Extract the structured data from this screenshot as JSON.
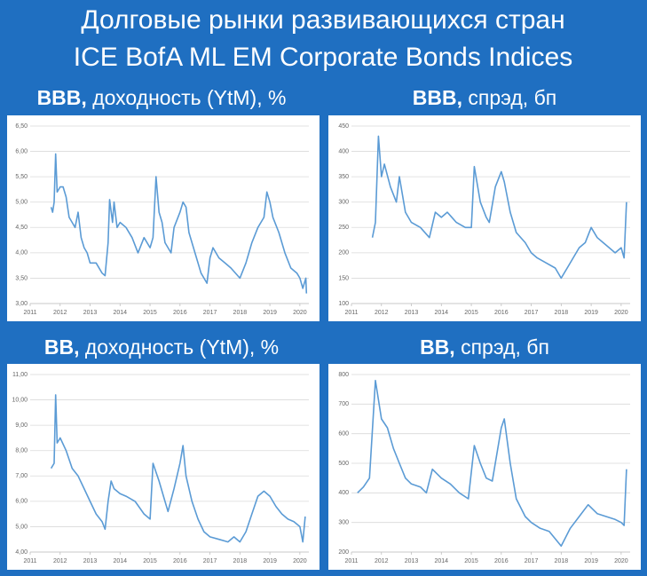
{
  "header": {
    "title": [
      "Долговые рынки развивающихся стран",
      "ICE BofA ML EM Corporate Bonds Indices"
    ]
  },
  "chart_data": [
    {
      "type": "line",
      "title": [
        "BBB,",
        "доходность (YtM), %"
      ],
      "color": "#5b9bd5",
      "grid": true,
      "xlim": [
        2011,
        2020.3
      ],
      "xticks": [
        2011,
        2012,
        2013,
        2014,
        2015,
        2016,
        2017,
        2018,
        2019,
        2020
      ],
      "ylim": [
        3,
        6.5
      ],
      "yticks": [
        {
          "value": 3,
          "label": "3,00"
        },
        {
          "value": 3.5,
          "label": "3,50"
        },
        {
          "value": 4,
          "label": "4,00"
        },
        {
          "value": 4.5,
          "label": "4,50"
        },
        {
          "value": 5,
          "label": "5,00"
        },
        {
          "value": 5.5,
          "label": "5,50"
        },
        {
          "value": 6,
          "label": "6,00"
        },
        {
          "value": 6.5,
          "label": "6,50"
        }
      ],
      "x": [
        2011.7,
        2011.75,
        2011.8,
        2011.85,
        2011.9,
        2012.0,
        2012.1,
        2012.2,
        2012.3,
        2012.4,
        2012.5,
        2012.6,
        2012.7,
        2012.8,
        2012.9,
        2013.0,
        2013.2,
        2013.4,
        2013.5,
        2013.6,
        2013.65,
        2013.75,
        2013.8,
        2013.9,
        2014.0,
        2014.2,
        2014.4,
        2014.6,
        2014.8,
        2015.0,
        2015.1,
        2015.2,
        2015.3,
        2015.4,
        2015.5,
        2015.7,
        2015.8,
        2016.0,
        2016.1,
        2016.2,
        2016.3,
        2016.5,
        2016.7,
        2016.9,
        2017.0,
        2017.1,
        2017.3,
        2017.5,
        2017.7,
        2018.0,
        2018.2,
        2018.4,
        2018.6,
        2018.8,
        2018.9,
        2019.0,
        2019.1,
        2019.3,
        2019.5,
        2019.7,
        2019.9,
        2020.0,
        2020.1,
        2020.2,
        2020.22
      ],
      "values": [
        4.9,
        4.8,
        5.0,
        5.95,
        5.2,
        5.3,
        5.3,
        5.1,
        4.7,
        4.6,
        4.5,
        4.8,
        4.3,
        4.1,
        4.0,
        3.8,
        3.8,
        3.6,
        3.55,
        4.2,
        5.05,
        4.6,
        5.0,
        4.5,
        4.6,
        4.5,
        4.3,
        4.0,
        4.3,
        4.1,
        4.3,
        5.5,
        4.8,
        4.6,
        4.2,
        4.0,
        4.5,
        4.8,
        5.0,
        4.9,
        4.4,
        4.0,
        3.6,
        3.4,
        3.9,
        4.1,
        3.9,
        3.8,
        3.7,
        3.5,
        3.8,
        4.2,
        4.5,
        4.7,
        5.2,
        5.0,
        4.7,
        4.4,
        4.0,
        3.7,
        3.6,
        3.5,
        3.3,
        3.5,
        3.2
      ]
    },
    {
      "type": "line",
      "title": [
        "BBB,",
        "спрэд, бп"
      ],
      "color": "#5b9bd5",
      "grid": true,
      "xlim": [
        2011,
        2020.3
      ],
      "xticks": [
        2011,
        2012,
        2013,
        2014,
        2015,
        2016,
        2017,
        2018,
        2019,
        2020
      ],
      "ylim": [
        100,
        450
      ],
      "yticks": [
        100,
        150,
        200,
        250,
        300,
        350,
        400,
        450
      ],
      "x": [
        2011.7,
        2011.8,
        2011.9,
        2012.0,
        2012.1,
        2012.3,
        2012.5,
        2012.6,
        2012.8,
        2013.0,
        2013.3,
        2013.6,
        2013.8,
        2014.0,
        2014.2,
        2014.5,
        2014.8,
        2015.0,
        2015.1,
        2015.3,
        2015.5,
        2015.6,
        2015.8,
        2016.0,
        2016.1,
        2016.3,
        2016.5,
        2016.8,
        2017.0,
        2017.2,
        2017.5,
        2017.8,
        2018.0,
        2018.2,
        2018.4,
        2018.6,
        2018.8,
        2019.0,
        2019.2,
        2019.4,
        2019.6,
        2019.8,
        2020.0,
        2020.1,
        2020.18
      ],
      "values": [
        230,
        260,
        430,
        350,
        375,
        330,
        300,
        350,
        280,
        260,
        250,
        230,
        280,
        270,
        280,
        260,
        250,
        250,
        370,
        300,
        270,
        260,
        330,
        360,
        340,
        280,
        240,
        220,
        200,
        190,
        180,
        170,
        150,
        170,
        190,
        210,
        220,
        250,
        230,
        220,
        210,
        200,
        210,
        190,
        300
      ]
    },
    {
      "type": "line",
      "title": [
        "BB,",
        "доходность (YtM), %"
      ],
      "color": "#5b9bd5",
      "grid": true,
      "xlim": [
        2011,
        2020.3
      ],
      "xticks": [
        2011,
        2012,
        2013,
        2014,
        2015,
        2016,
        2017,
        2018,
        2019,
        2020
      ],
      "ylim": [
        4,
        11
      ],
      "yticks": [
        {
          "value": 4,
          "label": "4,00"
        },
        {
          "value": 5,
          "label": "5,00"
        },
        {
          "value": 6,
          "label": "6,00"
        },
        {
          "value": 7,
          "label": "7,00"
        },
        {
          "value": 8,
          "label": "8,00"
        },
        {
          "value": 9,
          "label": "9,00"
        },
        {
          "value": 10,
          "label": "10,00"
        },
        {
          "value": 11,
          "label": "11,00"
        }
      ],
      "x": [
        2011.7,
        2011.8,
        2011.85,
        2011.9,
        2012.0,
        2012.2,
        2012.4,
        2012.6,
        2012.8,
        2013.0,
        2013.2,
        2013.4,
        2013.5,
        2013.6,
        2013.7,
        2013.8,
        2014.0,
        2014.2,
        2014.5,
        2014.8,
        2015.0,
        2015.1,
        2015.3,
        2015.5,
        2015.6,
        2015.8,
        2016.0,
        2016.1,
        2016.2,
        2016.4,
        2016.6,
        2016.8,
        2017.0,
        2017.3,
        2017.6,
        2017.8,
        2018.0,
        2018.2,
        2018.4,
        2018.6,
        2018.8,
        2019.0,
        2019.2,
        2019.4,
        2019.6,
        2019.8,
        2020.0,
        2020.1,
        2020.18
      ],
      "values": [
        7.3,
        7.5,
        10.2,
        8.3,
        8.5,
        8.0,
        7.3,
        7.0,
        6.5,
        6.0,
        5.5,
        5.2,
        4.9,
        6.0,
        6.8,
        6.5,
        6.3,
        6.2,
        6.0,
        5.5,
        5.3,
        7.5,
        6.8,
        6.0,
        5.6,
        6.5,
        7.5,
        8.2,
        7.0,
        6.0,
        5.3,
        4.8,
        4.6,
        4.5,
        4.4,
        4.6,
        4.4,
        4.8,
        5.5,
        6.2,
        6.4,
        6.2,
        5.8,
        5.5,
        5.3,
        5.2,
        5.0,
        4.4,
        5.4
      ]
    },
    {
      "type": "line",
      "title": [
        "BB,",
        "спрэд, бп"
      ],
      "color": "#5b9bd5",
      "grid": true,
      "xlim": [
        2011,
        2020.3
      ],
      "xticks": [
        2011,
        2012,
        2013,
        2014,
        2015,
        2016,
        2017,
        2018,
        2019,
        2020
      ],
      "ylim": [
        200,
        800
      ],
      "yticks": [
        200,
        300,
        400,
        500,
        600,
        700,
        800
      ],
      "x": [
        2011.2,
        2011.4,
        2011.6,
        2011.8,
        2012.0,
        2012.2,
        2012.4,
        2012.6,
        2012.8,
        2013.0,
        2013.3,
        2013.5,
        2013.7,
        2014.0,
        2014.3,
        2014.6,
        2014.9,
        2015.1,
        2015.3,
        2015.5,
        2015.7,
        2016.0,
        2016.1,
        2016.3,
        2016.5,
        2016.8,
        2017.0,
        2017.3,
        2017.6,
        2018.0,
        2018.3,
        2018.6,
        2018.9,
        2019.2,
        2019.5,
        2019.8,
        2020.0,
        2020.1,
        2020.18
      ],
      "values": [
        400,
        420,
        450,
        780,
        650,
        620,
        550,
        500,
        450,
        430,
        420,
        400,
        480,
        450,
        430,
        400,
        380,
        560,
        500,
        450,
        440,
        620,
        650,
        500,
        380,
        320,
        300,
        280,
        270,
        220,
        280,
        320,
        360,
        330,
        320,
        310,
        300,
        290,
        480
      ]
    }
  ]
}
